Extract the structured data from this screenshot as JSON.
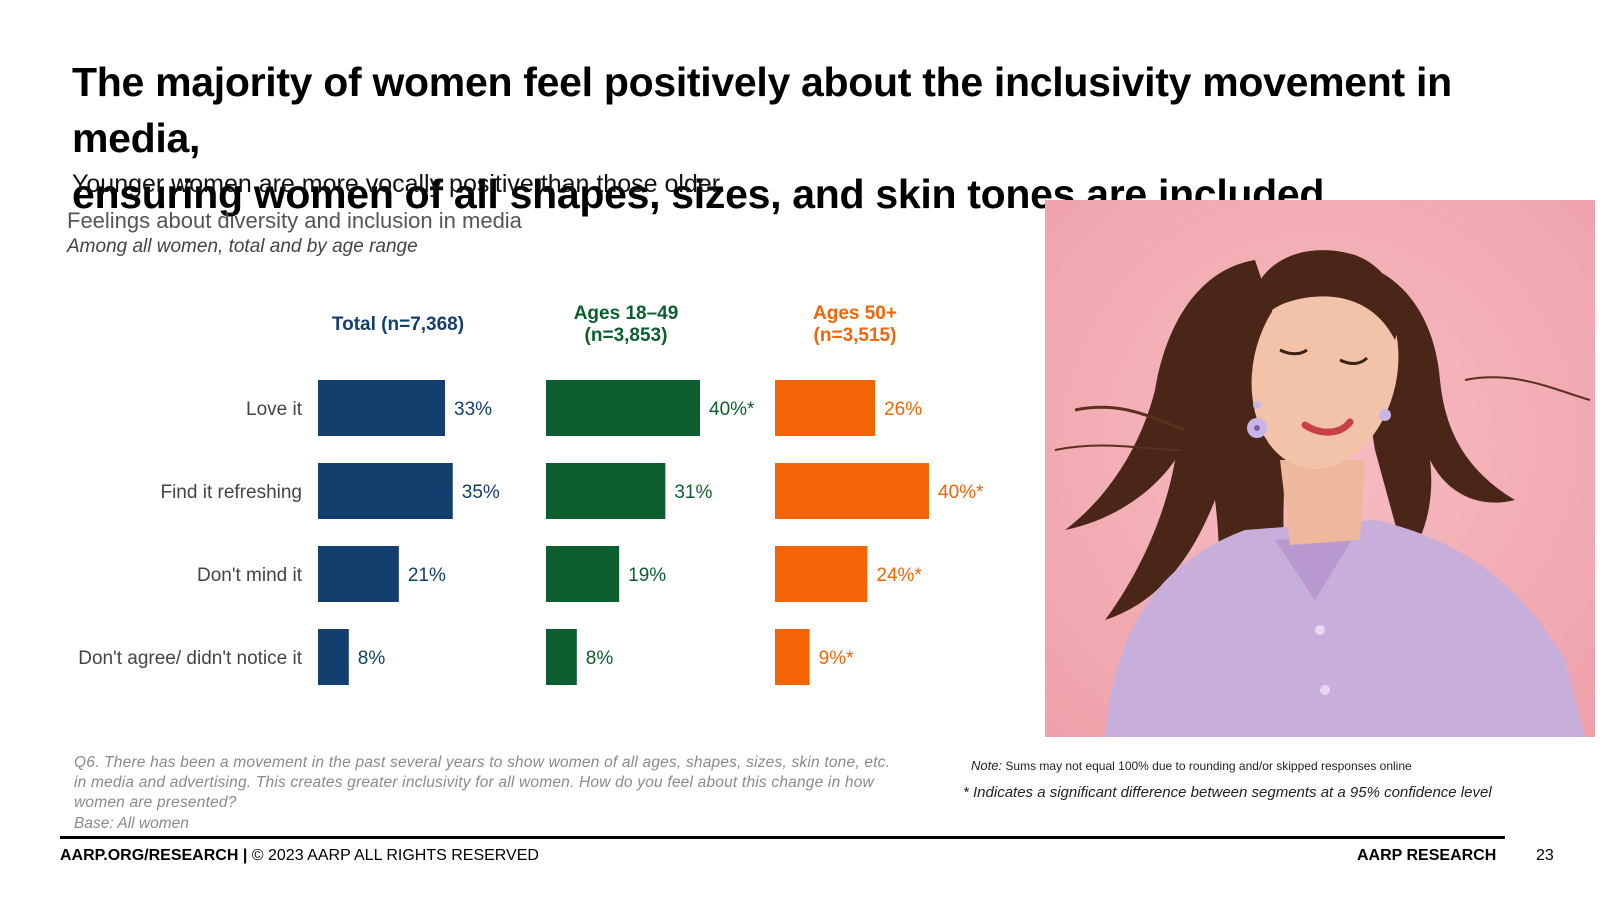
{
  "title": {
    "line1": "The majority of women feel positively about the inclusivity movement in media,",
    "line2": "ensuring women of all shapes, sizes, and skin tones are included."
  },
  "subtitle": "Younger women are more vocally positive than those older.",
  "chart_heading": "Feelings about diversity and inclusion in media",
  "chart_subheading": "Among all women, total and by age range",
  "chart_data": {
    "type": "bar",
    "orientation": "horizontal",
    "title": "Feelings about diversity and inclusion in media",
    "categories": [
      "Love it",
      "Find it refreshing",
      "Don't mind it",
      "Don't agree/ didn't notice it"
    ],
    "series": [
      {
        "name": "Total (n=7,368)",
        "header_lines": [
          "Total (n=7,368)"
        ],
        "color": "#133F6E",
        "values": [
          33,
          35,
          21,
          8
        ],
        "labels": [
          "33%",
          "35%",
          "21%",
          "8%"
        ]
      },
      {
        "name": "Ages 18–49 (n=3,853)",
        "header_lines": [
          "Ages 18–49",
          "(n=3,853)"
        ],
        "color": "#0D5E2E",
        "values": [
          40,
          31,
          19,
          8
        ],
        "labels": [
          "40%*",
          "31%",
          "19%",
          "8%"
        ]
      },
      {
        "name": "Ages 50+ (n=3,515)",
        "header_lines": [
          "Ages 50+",
          "(n=3,515)"
        ],
        "color": "#F26405",
        "values": [
          26,
          40,
          24,
          9
        ],
        "labels": [
          "26%",
          "40%*",
          "24%*",
          "9%*"
        ]
      }
    ],
    "xlim": [
      0,
      40
    ]
  },
  "question": "Q6. There has been a movement in the past several years to show women of all ages, shapes, sizes, skin tone, etc. in media and advertising. This creates greater inclusivity for all women.  How do you feel about this change in how women are presented?",
  "base": "Base: All women",
  "note_label": "Note:",
  "note_text": "Sums may not equal 100% due to rounding and/or skipped responses online",
  "significance": "* Indicates a significant difference between segments at a 95% confidence level",
  "footer": {
    "left_bold": "AARP.ORG/RESEARCH |",
    "left_rest": " © 2023 AARP ALL RIGHTS RESERVED",
    "right": "AARP RESEARCH",
    "page": "23"
  },
  "colors": {
    "photo_bg": "#F4AFB6",
    "shirt": "#C8AEDB",
    "hair": "#4A2618",
    "skin": "#F2C3A8"
  }
}
